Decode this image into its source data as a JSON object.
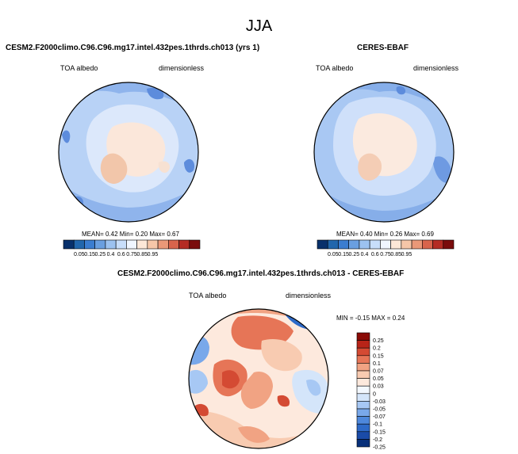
{
  "title": "JJA",
  "panels": {
    "model": {
      "title": "CESM2.F2000climo.C96.C96.mg17.intel.432pes.1thrds.ch013 (yrs 1)",
      "variable": "TOA albedo",
      "units": "dimensionless",
      "stats": "MEAN=  0.42  Min=  0.20  Max=  0.67"
    },
    "obs": {
      "title": "CERES-EBAF",
      "variable": "TOA albedo",
      "units": "dimensionless",
      "stats": "MEAN=  0.40  Min=  0.26  Max=  0.69"
    },
    "diff": {
      "title": "CESM2.F2000climo.C96.C96.mg17.intel.432pes.1thrds.ch013 - CERES-EBAF",
      "variable": "TOA albedo",
      "units": "dimensionless",
      "stats": "MIN =  -0.15 MAX =  0.24"
    }
  },
  "colors": {
    "abs_scale": [
      "#08306b",
      "#2166ac",
      "#3b7dd0",
      "#6a9fe0",
      "#9cc2f0",
      "#c8defa",
      "#f0f6ff",
      "#fde8d8",
      "#f6c6a8",
      "#ea9878",
      "#d8644c",
      "#b42c24",
      "#7a0c0c"
    ],
    "diff_scale": [
      "#08307a",
      "#1a4ba8",
      "#2e6ac8",
      "#4e88dc",
      "#79a8ea",
      "#a7c8f4",
      "#d4e5fa",
      "#f3f8ff",
      "#fde9dd",
      "#f8cbb1",
      "#f1a383",
      "#e67557",
      "#d44a33",
      "#b82418",
      "#8a0a06"
    ]
  },
  "chart_data": [
    {
      "type": "heatmap",
      "name": "model",
      "title": "CESM2.F2000climo.C96.C96.mg17.intel.432pes.1thrds.ch013 (yrs 1)",
      "projection": "north-polar-stereographic",
      "variable": "TOA albedo",
      "units": "dimensionless",
      "colorbar_levels": [
        "0.05",
        "0.15",
        "0.25",
        "0.4",
        "0.6",
        "0.75",
        "0.85",
        "0.95"
      ],
      "mean": 0.42,
      "min": 0.2,
      "max": 0.67
    },
    {
      "type": "heatmap",
      "name": "obs",
      "title": "CERES-EBAF",
      "projection": "north-polar-stereographic",
      "variable": "TOA albedo",
      "units": "dimensionless",
      "colorbar_levels": [
        "0.05",
        "0.15",
        "0.25",
        "0.4",
        "0.6",
        "0.75",
        "0.85",
        "0.95"
      ],
      "mean": 0.4,
      "min": 0.26,
      "max": 0.69
    },
    {
      "type": "heatmap",
      "name": "difference",
      "title": "CESM2.F2000climo.C96.C96.mg17.intel.432pes.1thrds.ch013 - CERES-EBAF",
      "projection": "north-polar-stereographic",
      "variable": "TOA albedo",
      "units": "dimensionless",
      "colorbar_levels": [
        "0.25",
        "0.2",
        "0.15",
        "0.1",
        "0.07",
        "0.05",
        "0.03",
        "0",
        "-0.03",
        "-0.05",
        "-0.07",
        "-0.1",
        "-0.15",
        "-0.2",
        "-0.25"
      ],
      "min": -0.15,
      "max": 0.24
    }
  ]
}
